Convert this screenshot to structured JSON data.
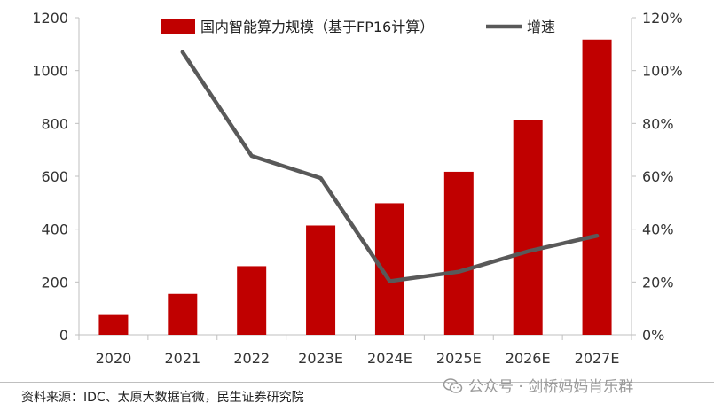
{
  "chart_data": {
    "type": "bar+line",
    "categories": [
      "2020",
      "2021",
      "2022",
      "2023E",
      "2024E",
      "2025E",
      "2026E",
      "2027E"
    ],
    "series": [
      {
        "name": "国内智能算力规模（基于FP16计算）",
        "type": "bar",
        "axis": "left",
        "color": "#c00000",
        "values": [
          75,
          155,
          260,
          414,
          498,
          617,
          812,
          1117
        ]
      },
      {
        "name": "增速",
        "type": "line",
        "axis": "right",
        "color": "#595959",
        "values": [
          null,
          107,
          67.7,
          59.3,
          20.3,
          23.9,
          31.6,
          37.5
        ]
      }
    ],
    "y_left": {
      "range": [
        0,
        1200
      ],
      "ticks": [
        "0",
        "200",
        "400",
        "600",
        "800",
        "1000",
        "1200"
      ]
    },
    "y_right": {
      "range": [
        0,
        120
      ],
      "ticks": [
        "0%",
        "20%",
        "40%",
        "60%",
        "80%",
        "100%",
        "120%"
      ]
    },
    "legend_position": "top",
    "grid": false
  },
  "source": "资料来源：IDC、太原大数据官微，民生证券研究院",
  "watermark": "公众号 · 剑桥妈妈肖乐群",
  "icons": {
    "watermark_icon": "wechat-icon"
  }
}
